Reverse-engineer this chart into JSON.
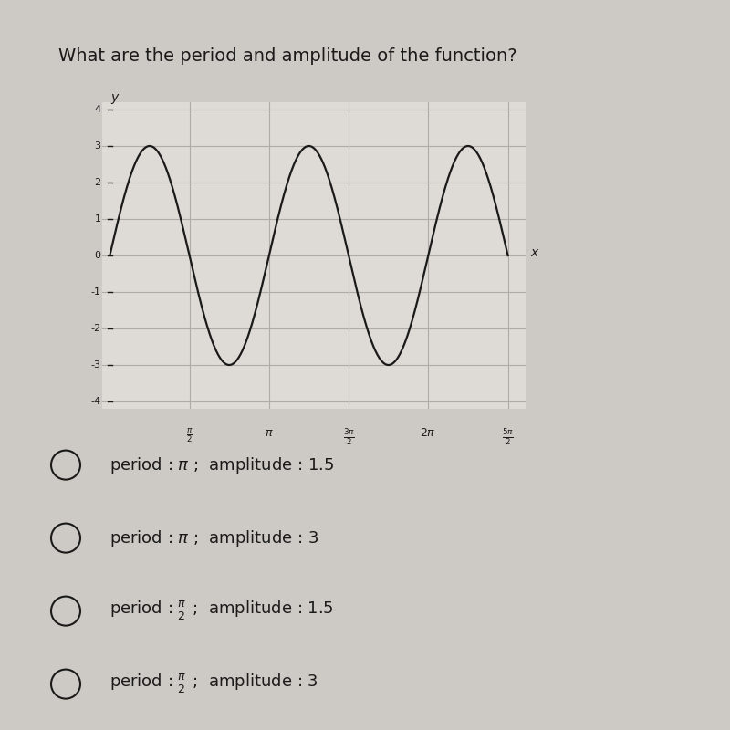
{
  "title": "What are the period and amplitude of the function?",
  "title_fontsize": 14,
  "bg_color": "#cdc9c4",
  "graph_bg_color": "#dedad6",
  "amplitude": 3,
  "frequency_multiplier": 2,
  "y_min": -4,
  "y_max": 4,
  "y_ticks": [
    -4,
    -3,
    -2,
    -1,
    0,
    1,
    2,
    3,
    4
  ],
  "line_color": "#1a1a1a",
  "grid_color": "#b0aba6",
  "axis_color": "#1a1a1a",
  "choice_labels": [
    "period : $\\pi$ ;  amplitude : 1.5",
    "period : $\\pi$ ;  amplitude : 3",
    "period : $\\frac{\\pi}{2}$ ;  amplitude : 1.5",
    "period : $\\frac{\\pi}{2}$ ;  amplitude : 3"
  ]
}
